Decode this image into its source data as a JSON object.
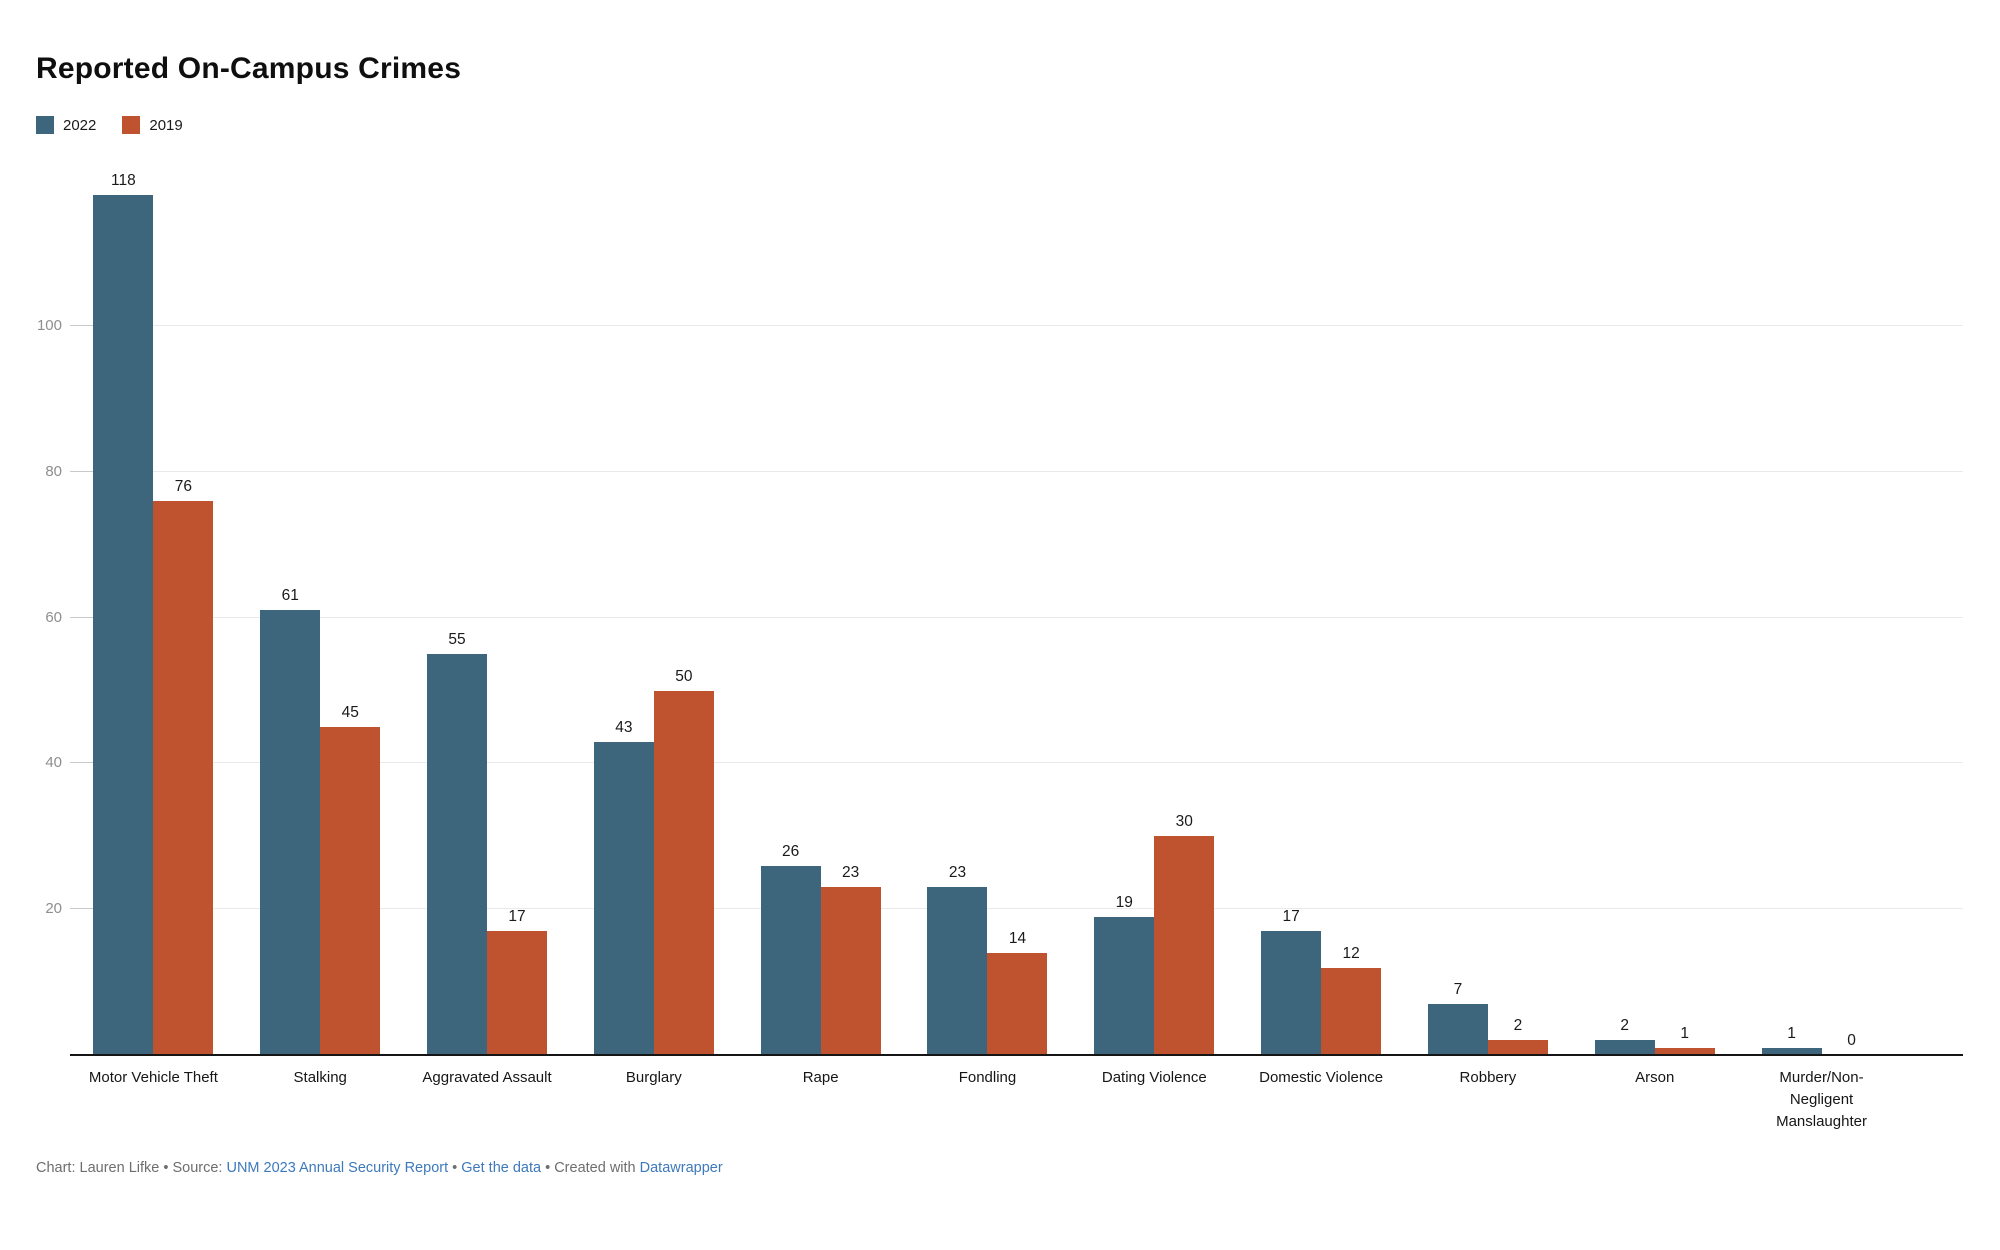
{
  "title": "Reported On-Campus Crimes",
  "chart_data": {
    "type": "bar",
    "title": "Reported On-Campus Crimes",
    "categories": [
      "Motor Vehicle Theft",
      "Stalking",
      "Aggravated Assault",
      "Burglary",
      "Rape",
      "Fondling",
      "Dating Violence",
      "Domestic Violence",
      "Robbery",
      "Arson",
      "Murder/Non-Negligent Manslaughter"
    ],
    "tick_labels": [
      "Motor Vehicle Theft",
      "Stalking",
      "Aggravated Assault",
      "Burglary",
      "Rape",
      "Fondling",
      "Dating Violence",
      "Domestic Violence",
      "Robbery",
      "Arson",
      "Murder/Non-\nNegligent\nManslaughter"
    ],
    "series": [
      {
        "name": "2022",
        "color": "#3d657c",
        "values": [
          118,
          61,
          55,
          43,
          26,
          23,
          19,
          17,
          7,
          2,
          1
        ]
      },
      {
        "name": "2019",
        "color": "#c0532f",
        "values": [
          76,
          45,
          17,
          50,
          23,
          14,
          30,
          12,
          2,
          1,
          0
        ]
      }
    ],
    "ylim": [
      0,
      118
    ],
    "yticks": [
      20,
      40,
      60,
      80,
      100
    ],
    "grid": "horizontal",
    "legend_position": "top-left",
    "value_labels": true
  },
  "colors": {
    "series_2022": "#3d657c",
    "series_2019": "#c0532f",
    "gridline": "#e9e9e9",
    "tick_mark": "#c9c9c9",
    "axis_line": "#151515",
    "y_label": "#8e8e8e",
    "text": "#1a1a1a",
    "footer_text": "#6e6e6e",
    "link": "#3d79bc"
  },
  "footer": {
    "credit": "Chart: Lauren Lifke",
    "sep0": " • ",
    "source_label": "Source: ",
    "source_link": "UNM 2023 Annual Security Report",
    "sep1": " • ",
    "data_link": "Get the data",
    "sep2": " • Created with ",
    "tool_link": "Datawrapper"
  }
}
